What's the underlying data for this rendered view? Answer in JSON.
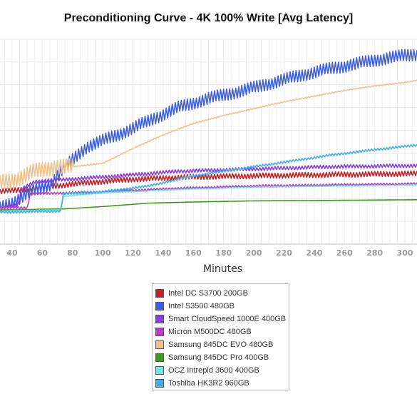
{
  "chart_data": {
    "type": "line",
    "title": "Preconditioning Curve - 4K 100% Write [Avg Latency]",
    "xlabel": "Minutes",
    "ylabel": "",
    "xlim": [
      32,
      308
    ],
    "ylim": [
      0,
      9
    ],
    "x_ticks": [
      40,
      60,
      80,
      100,
      120,
      140,
      160,
      180,
      200,
      220,
      240,
      260,
      280,
      300
    ],
    "grid": true,
    "legend_position": "bottom",
    "series": [
      {
        "name": "Intel DC S3700 200GB",
        "color": "#c62025",
        "points": [
          [
            32,
            2.3
          ],
          [
            60,
            2.5
          ],
          [
            90,
            2.7
          ],
          [
            120,
            2.85
          ],
          [
            160,
            2.95
          ],
          [
            200,
            3.0
          ],
          [
            250,
            3.05
          ],
          [
            308,
            3.1
          ]
        ],
        "noise": 0.12
      },
      {
        "name": "Intel S3500 480GB",
        "color": "#3d5ee0",
        "points": [
          [
            32,
            1.6
          ],
          [
            42,
            1.9
          ],
          [
            55,
            2.4
          ],
          [
            65,
            2.6
          ],
          [
            75,
            3.4
          ],
          [
            90,
            4.3
          ],
          [
            110,
            4.8
          ],
          [
            130,
            5.4
          ],
          [
            150,
            6.0
          ],
          [
            170,
            6.4
          ],
          [
            190,
            6.7
          ],
          [
            210,
            7.05
          ],
          [
            230,
            7.4
          ],
          [
            250,
            7.7
          ],
          [
            270,
            7.95
          ],
          [
            290,
            8.2
          ],
          [
            308,
            8.35
          ]
        ],
        "noise": 0.28
      },
      {
        "name": "Smart CloudSpeed 1000E 400GB",
        "color": "#8b3fe0",
        "points": [
          [
            32,
            1.6
          ],
          [
            44,
            1.7
          ],
          [
            46,
            2.4
          ],
          [
            55,
            2.75
          ],
          [
            100,
            2.95
          ],
          [
            150,
            3.2
          ],
          [
            200,
            3.3
          ],
          [
            250,
            3.4
          ],
          [
            308,
            3.45
          ]
        ],
        "noise": 0.08
      },
      {
        "name": "Micron M500DC 480GB",
        "color": "#c23bc4",
        "points": [
          [
            32,
            1.6
          ],
          [
            50,
            1.6
          ],
          [
            52,
            2.2
          ],
          [
            100,
            2.3
          ],
          [
            150,
            2.45
          ],
          [
            200,
            2.55
          ],
          [
            250,
            2.6
          ],
          [
            308,
            2.65
          ]
        ],
        "noise": 0.05
      },
      {
        "name": "Samsung 845DC EVO 480GB",
        "color": "#f2c18a",
        "points": [
          [
            32,
            2.7
          ],
          [
            45,
            2.9
          ],
          [
            55,
            3.2
          ],
          [
            68,
            3.4
          ],
          [
            80,
            3.4
          ],
          [
            100,
            3.55
          ],
          [
            120,
            4.2
          ],
          [
            140,
            4.8
          ],
          [
            160,
            5.3
          ],
          [
            180,
            5.65
          ],
          [
            200,
            5.95
          ],
          [
            220,
            6.25
          ],
          [
            240,
            6.5
          ],
          [
            260,
            6.75
          ],
          [
            280,
            6.95
          ],
          [
            300,
            7.1
          ],
          [
            308,
            7.2
          ]
        ],
        "noise": 0.35,
        "noise_until": 80
      },
      {
        "name": "Samsung 845DC Pro 400GB",
        "color": "#3d9a1c",
        "points": [
          [
            32,
            1.5
          ],
          [
            75,
            1.55
          ],
          [
            100,
            1.65
          ],
          [
            130,
            1.8
          ],
          [
            160,
            1.85
          ],
          [
            200,
            1.9
          ],
          [
            250,
            1.92
          ],
          [
            308,
            1.95
          ]
        ],
        "noise": 0.0
      },
      {
        "name": "OCZ Intrepid 3600 400GB",
        "color": "#6de8e0",
        "points": [
          [
            32,
            1.45
          ],
          [
            72,
            1.5
          ],
          [
            74,
            2.1
          ],
          [
            100,
            2.25
          ],
          [
            150,
            2.4
          ],
          [
            200,
            2.5
          ],
          [
            250,
            2.55
          ],
          [
            308,
            2.6
          ]
        ],
        "noise": 0.02
      },
      {
        "name": "Toshiba HK3R2 960GB",
        "color": "#3fb0e8",
        "points": [
          [
            32,
            1.4
          ],
          [
            72,
            1.45
          ],
          [
            74,
            2.2
          ],
          [
            100,
            2.3
          ],
          [
            130,
            2.55
          ],
          [
            160,
            3.0
          ],
          [
            190,
            3.3
          ],
          [
            220,
            3.6
          ],
          [
            250,
            3.9
          ],
          [
            280,
            4.15
          ],
          [
            308,
            4.35
          ]
        ],
        "noise": 0.05
      }
    ]
  }
}
